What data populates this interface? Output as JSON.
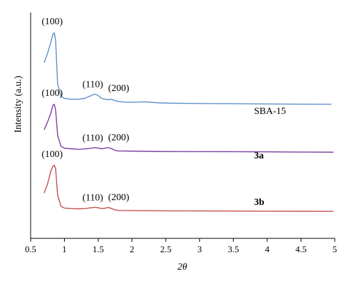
{
  "chart_data": {
    "type": "line",
    "title": "",
    "xlabel": "2θ",
    "ylabel": "Intensity (a.u.)",
    "xlim": [
      0.5,
      5
    ],
    "x_ticks": [
      "0.5",
      "1",
      "1.5",
      "2",
      "2.5",
      "3",
      "3.5",
      "4",
      "4.5",
      "5"
    ],
    "y_ticks_shown": false,
    "grid": false,
    "legend": "none",
    "series": [
      {
        "name": "SBA-15",
        "label_bold": false,
        "color": "#5b8fc7",
        "x": [
          0.7,
          0.75,
          0.8,
          0.83,
          0.85,
          0.87,
          0.9,
          0.95,
          1.0,
          1.1,
          1.2,
          1.3,
          1.4,
          1.45,
          1.5,
          1.55,
          1.6,
          1.65,
          1.7,
          1.75,
          1.8,
          1.9,
          2.0,
          2.2,
          2.4,
          2.6,
          3.0,
          3.5,
          4.0,
          4.5,
          4.95
        ],
        "y": [
          0.68,
          0.78,
          0.9,
          0.98,
          1.0,
          0.92,
          0.45,
          0.32,
          0.3,
          0.29,
          0.29,
          0.3,
          0.33,
          0.345,
          0.33,
          0.3,
          0.29,
          0.285,
          0.29,
          0.275,
          0.265,
          0.26,
          0.258,
          0.262,
          0.252,
          0.248,
          0.245,
          0.242,
          0.24,
          0.238,
          0.236
        ]
      },
      {
        "name": "3a",
        "label_bold": true,
        "color": "#7b3f9e",
        "x": [
          0.7,
          0.75,
          0.8,
          0.83,
          0.85,
          0.87,
          0.9,
          0.95,
          1.0,
          1.1,
          1.2,
          1.3,
          1.4,
          1.45,
          1.5,
          1.55,
          1.6,
          1.65,
          1.7,
          1.75,
          1.8,
          2.0,
          2.5,
          3.0,
          3.5,
          4.0,
          4.5,
          4.98
        ],
        "y": [
          0.37,
          0.44,
          0.52,
          0.59,
          0.6,
          0.55,
          0.32,
          0.22,
          0.205,
          0.2,
          0.195,
          0.198,
          0.205,
          0.21,
          0.205,
          0.2,
          0.205,
          0.21,
          0.2,
          0.185,
          0.18,
          0.178,
          0.175,
          0.174,
          0.173,
          0.172,
          0.17,
          0.169
        ]
      },
      {
        "name": "3b",
        "label_bold": true,
        "color": "#c0504d",
        "x": [
          0.7,
          0.75,
          0.8,
          0.83,
          0.85,
          0.87,
          0.9,
          0.95,
          1.0,
          1.1,
          1.2,
          1.3,
          1.4,
          1.45,
          1.5,
          1.55,
          1.6,
          1.65,
          1.7,
          1.75,
          1.8,
          2.0,
          2.5,
          3.0,
          3.5,
          4.0,
          4.5,
          4.98
        ],
        "y": [
          0.22,
          0.3,
          0.42,
          0.46,
          0.47,
          0.44,
          0.2,
          0.1,
          0.085,
          0.08,
          0.078,
          0.08,
          0.088,
          0.092,
          0.088,
          0.08,
          0.084,
          0.09,
          0.08,
          0.068,
          0.064,
          0.062,
          0.06,
          0.059,
          0.058,
          0.057,
          0.056,
          0.055
        ]
      }
    ],
    "annotations": [
      {
        "text": "(100)",
        "series": "SBA-15",
        "x": 0.85
      },
      {
        "text": "(110)",
        "series": "SBA-15",
        "x": 1.45
      },
      {
        "text": "(200)",
        "series": "SBA-15",
        "x": 1.7
      },
      {
        "text": "(100)",
        "series": "3a",
        "x": 0.85
      },
      {
        "text": "(110)",
        "series": "3a",
        "x": 1.45
      },
      {
        "text": "(200)",
        "series": "3a",
        "x": 1.7
      },
      {
        "text": "(100)",
        "series": "3b",
        "x": 0.85
      },
      {
        "text": "(110)",
        "series": "3b",
        "x": 1.45
      },
      {
        "text": "(200)",
        "series": "3b",
        "x": 1.7
      }
    ]
  }
}
